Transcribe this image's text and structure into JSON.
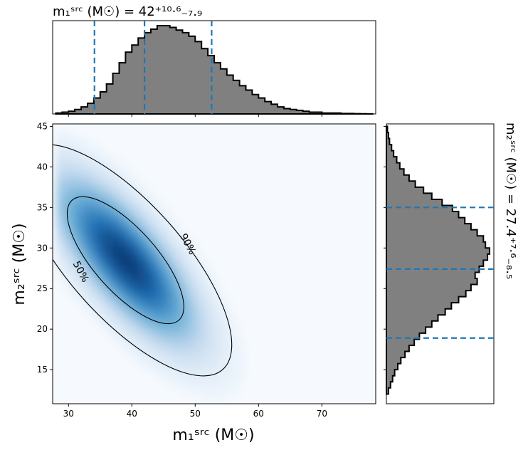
{
  "chart_data": {
    "type": "heatmap",
    "x_axis": {
      "label": "m₁ˢʳᶜ (M☉)",
      "xlim": [
        27.5,
        78.5
      ],
      "ticks": [
        30,
        40,
        50,
        60,
        70
      ],
      "tick_labels": [
        "30",
        "40",
        "50",
        "60",
        "70"
      ]
    },
    "y_axis": {
      "label": "m₂ˢʳᶜ (M☉)",
      "ylim": [
        10.8,
        45.3
      ],
      "ticks": [
        15,
        20,
        25,
        30,
        35,
        40,
        45
      ],
      "tick_labels": [
        "15",
        "20",
        "25",
        "30",
        "35",
        "40",
        "45"
      ]
    },
    "m1_marginal": {
      "title": "m₁ˢʳᶜ (M☉) = 42⁺¹⁰·⁶₋₇.₉",
      "median": 42,
      "plus": 10.6,
      "minus": 7.9,
      "quantile_lines": [
        34.1,
        42.0,
        52.6
      ],
      "bin_edges_start": 28,
      "bin_width": 1,
      "counts": [
        1,
        2,
        3,
        5,
        8,
        12,
        18,
        25,
        34,
        46,
        58,
        70,
        78,
        86,
        92,
        96,
        100,
        100,
        98,
        95,
        92,
        88,
        82,
        74,
        66,
        58,
        51,
        44,
        38,
        32,
        27,
        22,
        18,
        14,
        11,
        8,
        6,
        5,
        4,
        3,
        2,
        2,
        1,
        1,
        1,
        0.5,
        0.5,
        0.3,
        0.2,
        0.1
      ]
    },
    "m2_marginal": {
      "title": "m₂ˢʳᶜ (M☉) = 27.4⁺⁷·⁶₋₈.₅",
      "median": 27.4,
      "plus": 7.6,
      "minus": 8.5,
      "quantile_lines": [
        18.9,
        27.4,
        35.0
      ],
      "bin_edges_start": 12,
      "bin_width": 0.75,
      "counts": [
        2,
        4,
        6,
        8,
        11,
        14,
        18,
        22,
        27,
        32,
        38,
        44,
        50,
        57,
        63,
        70,
        77,
        82,
        88,
        86,
        90,
        94,
        98,
        100,
        96,
        94,
        88,
        82,
        76,
        70,
        64,
        54,
        44,
        36,
        28,
        22,
        17,
        13,
        10,
        7,
        5,
        3,
        2,
        1
      ]
    },
    "contours": [
      {
        "label": "50%"
      },
      {
        "label": "90%"
      }
    ],
    "density_peak": [
      39,
      28.5
    ],
    "colors": {
      "heatmap": "Blues",
      "histogram_fill": "#808080",
      "histogram_edge": "#000000",
      "quantile_line": "#1f77b4",
      "contour": "#000000"
    }
  }
}
